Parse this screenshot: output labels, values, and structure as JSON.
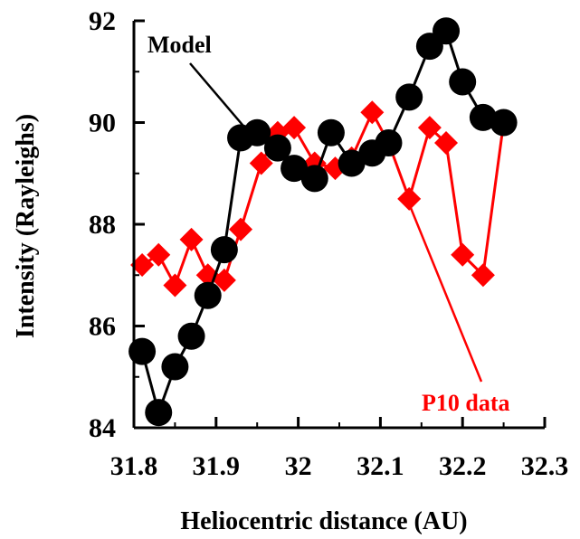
{
  "chart_data": {
    "type": "line",
    "title": "",
    "xlabel": "Heliocentric distance (AU)",
    "ylabel": "Intensity (Rayleighs)",
    "xlim": [
      31.8,
      32.3
    ],
    "ylim": [
      84,
      92
    ],
    "xticks": [
      "31.8",
      "31.9",
      "32",
      "32.1",
      "32.2",
      "32.3"
    ],
    "yticks": [
      "84",
      "86",
      "88",
      "90",
      "92"
    ],
    "xtick_values": [
      31.8,
      31.9,
      32.0,
      32.1,
      32.2,
      32.3
    ],
    "ytick_values": [
      84,
      86,
      88,
      90,
      92
    ],
    "grid": false,
    "series": [
      {
        "name": "Model",
        "color": "#000000",
        "marker": "circle",
        "x": [
          31.81,
          31.83,
          31.85,
          31.87,
          31.89,
          31.91,
          31.93,
          31.95,
          31.975,
          31.995,
          32.02,
          32.04,
          32.065,
          32.09,
          32.11,
          32.135,
          32.16,
          32.18,
          32.2,
          32.225,
          32.25
        ],
        "y": [
          85.5,
          84.3,
          85.2,
          85.8,
          86.6,
          87.5,
          89.7,
          89.8,
          89.5,
          89.1,
          88.9,
          89.8,
          89.2,
          89.4,
          89.6,
          90.5,
          91.5,
          91.8,
          90.8,
          90.1,
          90.0
        ]
      },
      {
        "name": "P10 data",
        "color": "#ff0000",
        "marker": "diamond",
        "x": [
          31.81,
          31.83,
          31.85,
          31.87,
          31.89,
          31.91,
          31.93,
          31.955,
          31.975,
          31.995,
          32.02,
          32.045,
          32.065,
          32.09,
          32.11,
          32.135,
          32.16,
          32.18,
          32.2,
          32.225,
          32.25
        ],
        "y": [
          87.2,
          87.4,
          86.8,
          87.7,
          87.0,
          86.9,
          87.9,
          89.2,
          89.8,
          89.9,
          89.2,
          89.1,
          89.3,
          90.2,
          89.6,
          88.5,
          89.9,
          89.6,
          87.4,
          87.0,
          90.0
        ]
      }
    ],
    "annotations": [
      {
        "text": "Model",
        "color": "#000000",
        "points_to": {
          "x": 31.935,
          "y": 89.9
        }
      },
      {
        "text": "P10 data",
        "color": "#ff0000",
        "points_to": {
          "x": 32.135,
          "y": 88.4
        }
      }
    ]
  }
}
